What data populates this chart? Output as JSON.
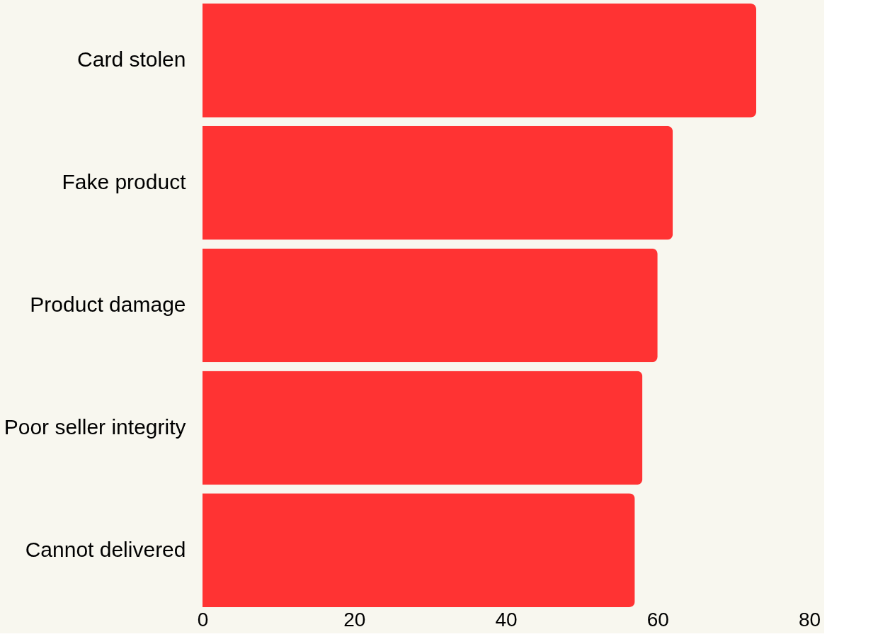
{
  "chart_data": {
    "type": "bar",
    "orientation": "horizontal",
    "categories": [
      "Card stolen",
      "Fake product",
      "Product damage",
      "Poor seller integrity",
      "Cannot delivered"
    ],
    "values": [
      73,
      62,
      60,
      58,
      57
    ],
    "color": "#ff3333",
    "xlim": [
      0,
      80
    ],
    "xticks": [
      0,
      20,
      40,
      60,
      80
    ],
    "grid": false
  }
}
